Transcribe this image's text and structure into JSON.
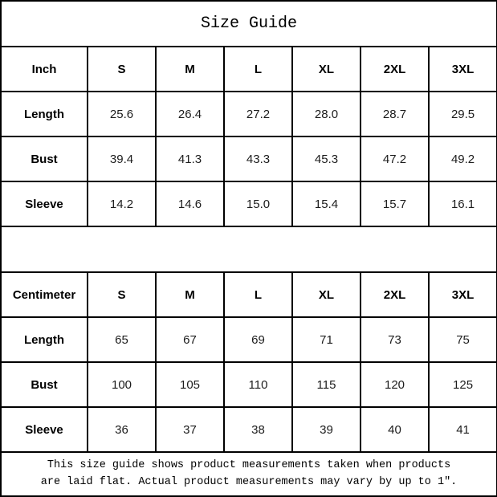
{
  "title": "Size Guide",
  "colors": {
    "background": "#ffffff",
    "border": "#000000",
    "text": "#000000"
  },
  "tables": [
    {
      "unit": "Inch",
      "sizes": [
        "S",
        "M",
        "L",
        "XL",
        "2XL",
        "3XL"
      ],
      "rows": [
        {
          "label": "Length",
          "values": [
            "25.6",
            "26.4",
            "27.2",
            "28.0",
            "28.7",
            "29.5"
          ]
        },
        {
          "label": "Bust",
          "values": [
            "39.4",
            "41.3",
            "43.3",
            "45.3",
            "47.2",
            "49.2"
          ]
        },
        {
          "label": "Sleeve",
          "values": [
            "14.2",
            "14.6",
            "15.0",
            "15.4",
            "15.7",
            "16.1"
          ]
        }
      ]
    },
    {
      "unit": "Centimeter",
      "sizes": [
        "S",
        "M",
        "L",
        "XL",
        "2XL",
        "3XL"
      ],
      "rows": [
        {
          "label": "Length",
          "values": [
            "65",
            "67",
            "69",
            "71",
            "73",
            "75"
          ]
        },
        {
          "label": "Bust",
          "values": [
            "100",
            "105",
            "110",
            "115",
            "120",
            "125"
          ]
        },
        {
          "label": "Sleeve",
          "values": [
            "36",
            "37",
            "38",
            "39",
            "40",
            "41"
          ]
        }
      ]
    }
  ],
  "footer": {
    "line1": "This size guide shows product measurements taken when products",
    "line2": "are laid flat. Actual product measurements may vary by up to 1″."
  }
}
